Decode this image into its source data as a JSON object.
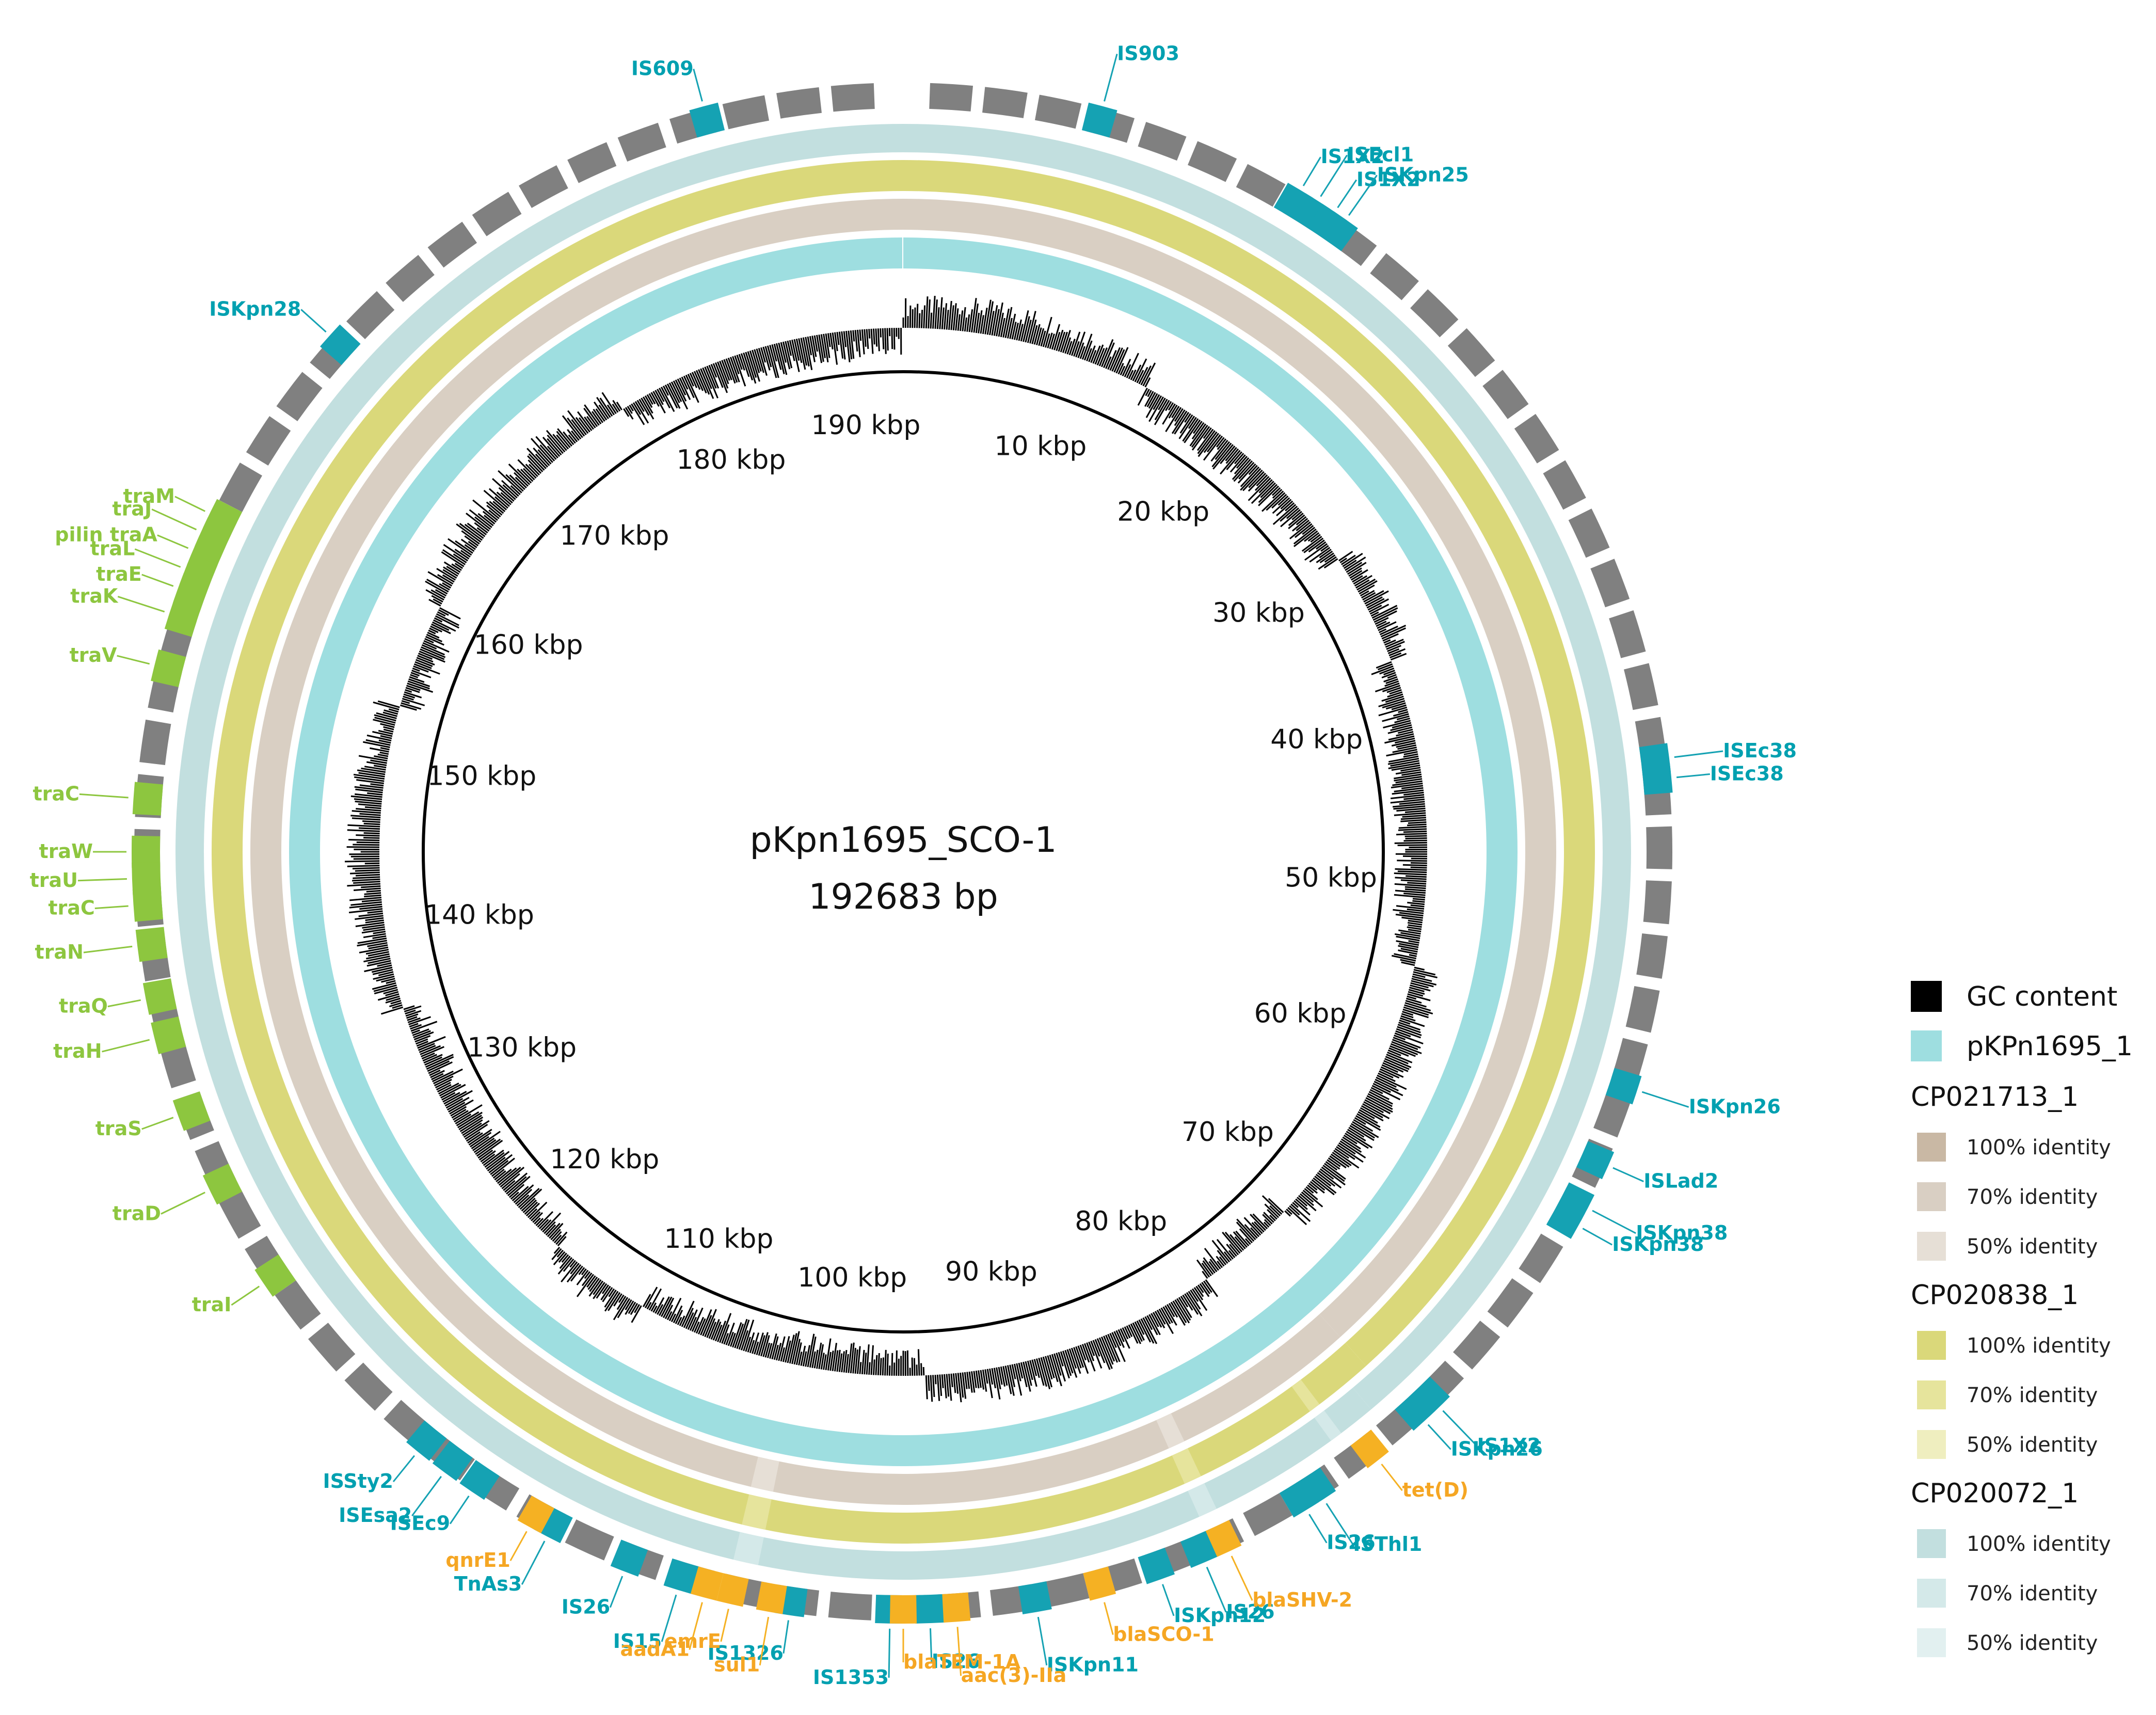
{
  "title": {
    "name": "pKpn1695_SCO-1",
    "size": "192683 bp"
  },
  "colors": {
    "is_element": "#15a2b3",
    "tra_gene": "#8dc63f",
    "resistance_gene": "#f5b123",
    "cds": "#808080",
    "gc_content": "#000000",
    "pKPn1695_1": "#9edee0",
    "CP021713_1": [
      "#c9b8a4",
      "#d9cfc3",
      "#e6dfd6"
    ],
    "CP020838_1": [
      "#dad87a",
      "#e6e49c",
      "#efeebf"
    ],
    "CP020072_1": [
      "#c2dfdf",
      "#d4e9e9",
      "#e2f0f0"
    ]
  },
  "scale_labels": [
    "10 kbp",
    "20 kbp",
    "30 kbp",
    "40 kbp",
    "50 kbp",
    "60 kbp",
    "70 kbp",
    "80 kbp",
    "90 kbp",
    "100 kbp",
    "110 kbp",
    "120 kbp",
    "130 kbp",
    "140 kbp",
    "150 kbp",
    "160 kbp",
    "170 kbp",
    "180 kbp",
    "190 kbp"
  ],
  "gene_labels": {
    "is_elements": [
      "IS609",
      "IS903",
      "IS1X2",
      "ISEcl1",
      "IS1X2",
      "ISKpn25",
      "ISKpn28",
      "ISEc38",
      "ISEc38",
      "ISKpn26",
      "ISLad2",
      "ISKpn38",
      "ISKpn38",
      "IS1X2",
      "ISKpn26",
      "ISThl1",
      "IS26",
      "IS26",
      "ISKpn12",
      "ISKpn11",
      "IS26",
      "IS1353",
      "IS1326",
      "IS15",
      "IS26",
      "TnAs3",
      "ISEc9",
      "ISEsa2",
      "ISSty2"
    ],
    "tra_genes": [
      "traM",
      "traJ",
      "pilin traA",
      "traL",
      "traE",
      "traK",
      "traV",
      "traC",
      "traW",
      "traU",
      "traC",
      "traN",
      "traQ",
      "traH",
      "traS",
      "traD",
      "traI"
    ],
    "resistance_genes": [
      "tet(D)",
      "blaSHV-2",
      "blaSCO-1",
      "aac(3)-IIa",
      "blaTEM-1A",
      "sul1",
      "emrE",
      "aadA1",
      "qnrE1"
    ]
  },
  "legend": {
    "gc_content": "GC content",
    "reference": "pKPn1695_1",
    "groups": [
      {
        "name": "CP021713_1",
        "items": [
          "100% identity",
          "70% identity",
          "50% identity"
        ]
      },
      {
        "name": "CP020838_1",
        "items": [
          "100% identity",
          "70% identity",
          "50% identity"
        ]
      },
      {
        "name": "CP020072_1",
        "items": [
          "100% identity",
          "70% identity",
          "50% identity"
        ]
      }
    ]
  }
}
